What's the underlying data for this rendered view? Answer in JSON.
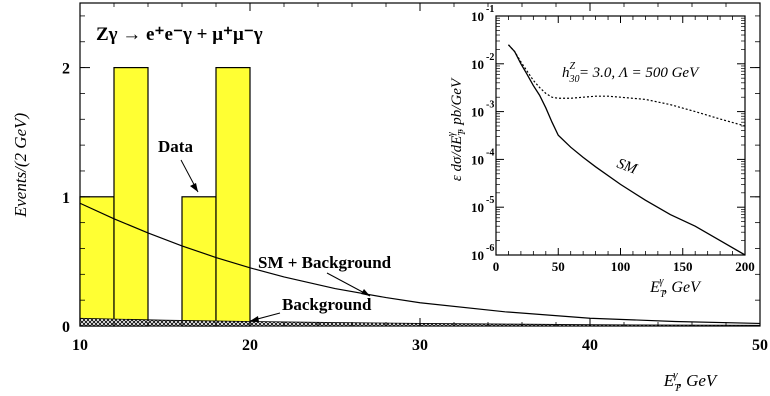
{
  "chart_data": [
    {
      "type": "bar",
      "title": "Zγ → e⁺e⁻γ + μ⁺μ⁻γ",
      "xlabel": "E_T^γ, GeV",
      "ylabel": "Events/(2 GeV)",
      "xlim": [
        10,
        50
      ],
      "ylim": [
        0,
        2.5
      ],
      "xticks": [
        10,
        20,
        30,
        40,
        50
      ],
      "yticks": [
        0,
        1,
        2
      ],
      "data_histogram": {
        "name": "Data",
        "bins": [
          {
            "x0": 10,
            "x1": 12,
            "value": 1
          },
          {
            "x0": 12,
            "x1": 14,
            "value": 2
          },
          {
            "x0": 16,
            "x1": 18,
            "value": 1
          },
          {
            "x0": 18,
            "x1": 20,
            "value": 2
          }
        ],
        "color": "#ffff33"
      },
      "series": [
        {
          "name": "SM + Background",
          "x": [
            10,
            12,
            14,
            16,
            18,
            20,
            22,
            25,
            28,
            30,
            35,
            40,
            45,
            50
          ],
          "values": [
            0.95,
            0.83,
            0.72,
            0.62,
            0.53,
            0.45,
            0.38,
            0.29,
            0.22,
            0.18,
            0.11,
            0.06,
            0.035,
            0.02
          ]
        },
        {
          "name": "Background",
          "x": [
            10,
            15,
            20,
            25,
            30,
            35,
            40,
            45,
            50
          ],
          "values": [
            0.06,
            0.045,
            0.035,
            0.027,
            0.02,
            0.015,
            0.01,
            0.008,
            0.006
          ]
        }
      ],
      "annotations": [
        "Data",
        "SM + Background",
        "Background"
      ]
    },
    {
      "type": "line",
      "xlabel": "E_T^γ, GeV",
      "ylabel": "ε dσ/dE_T^γ, pb/GeV",
      "xlim": [
        0,
        200
      ],
      "ylim": [
        1e-06,
        0.1
      ],
      "log_y": true,
      "xticks": [
        0,
        50,
        100,
        150,
        200
      ],
      "ytick_exponents": [
        -1,
        -2,
        -3,
        -4,
        -5,
        -6
      ],
      "series": [
        {
          "name": "SM",
          "x": [
            10,
            15,
            20,
            25,
            30,
            35,
            40,
            45,
            50,
            60,
            70,
            80,
            100,
            120,
            140,
            160,
            180,
            200
          ],
          "values": [
            0.025,
            0.018,
            0.01,
            0.006,
            0.0035,
            0.0022,
            0.0012,
            0.0006,
            0.00032,
            0.00018,
            0.00011,
            7e-05,
            3e-05,
            1.4e-05,
            7e-06,
            4e-06,
            2e-06,
            1e-06
          ]
        },
        {
          "name": "h₃₀ᶻ = 3.0, Λ = 500 GeV",
          "x": [
            10,
            15,
            20,
            25,
            30,
            35,
            40,
            45,
            50,
            60,
            70,
            80,
            90,
            100,
            120,
            140,
            160,
            180,
            200
          ],
          "values": [
            0.025,
            0.018,
            0.011,
            0.007,
            0.0045,
            0.0032,
            0.0024,
            0.002,
            0.0019,
            0.0019,
            0.002,
            0.0021,
            0.0021,
            0.002,
            0.0018,
            0.0014,
            0.001,
            0.0007,
            0.0005
          ]
        }
      ]
    }
  ],
  "text": {
    "title": "Zγ → e⁺e⁻γ + μ⁺μ⁻γ",
    "main_ylabel": "Events/(2 GeV)",
    "main_xlabel_base": "E",
    "main_xlabel_sup": "γ",
    "main_xlabel_sub": "T",
    "main_xlabel_unit": ",  GeV",
    "label_data": "Data",
    "label_sm_bg": "SM + Background",
    "label_bg": "Background",
    "inset_ylabel": "ε dσ/dE",
    "inset_ylabel_sup": "γ",
    "inset_ylabel_sub": "T",
    "inset_ylabel_unit": ",  pb/GeV",
    "inset_sm": "SM",
    "inset_h": "h",
    "inset_h_sup": "Z",
    "inset_h_sub": "30",
    "inset_h_rest": " = 3.0,  Λ = 500 GeV",
    "inset_xlabel_base": "E",
    "inset_xlabel_sup": "γ",
    "inset_xlabel_sub": "T",
    "inset_xlabel_unit": ",  GeV",
    "main_xtick_labels": [
      "10",
      "20",
      "30",
      "40",
      "50"
    ],
    "main_ytick_labels": [
      "0",
      "1",
      "2"
    ],
    "inset_xtick_labels": [
      "0",
      "50",
      "100",
      "150",
      "200"
    ],
    "inset_ytick_base": "10",
    "inset_ytick_exps": [
      "-1",
      "-2",
      "-3",
      "-4",
      "-5",
      "-6"
    ]
  },
  "colors": {
    "bar_fill": "#ffff33",
    "ink": "#000000"
  }
}
